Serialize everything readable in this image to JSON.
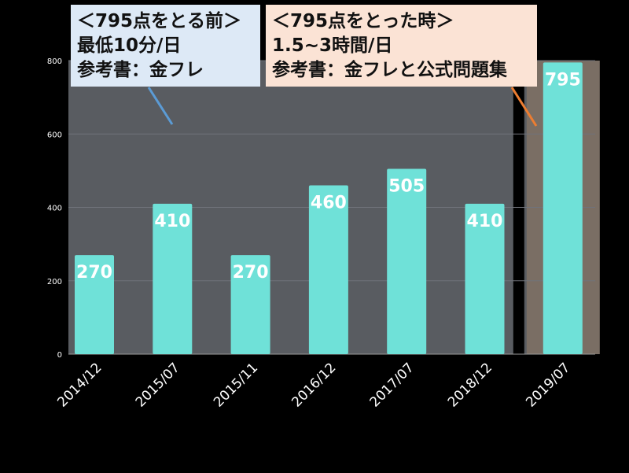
{
  "chart_data": {
    "type": "bar",
    "categories": [
      "2014/12",
      "2015/07",
      "2015/11",
      "2016/12",
      "2017/07",
      "2018/12",
      "2019/07"
    ],
    "values": [
      270,
      410,
      270,
      460,
      505,
      410,
      795
    ],
    "data_labels": [
      "270",
      "410",
      "270",
      "460",
      "505",
      "410",
      "795"
    ],
    "y_ticks": [
      0,
      200,
      400,
      600,
      800
    ],
    "ylim": [
      0,
      800
    ],
    "grid": true,
    "highlight_category": "2019/07"
  },
  "callouts": {
    "before": {
      "title": "＜795点をとる前＞",
      "line1": "最低10分/日",
      "line2": "参考書：金フレ"
    },
    "after": {
      "title": "＜795点をとった時＞",
      "line1": "1.5~3時間/日",
      "line2": "参考書：金フレと公式問題集"
    }
  },
  "colors": {
    "background": "#000000",
    "plot_area": "#595c61",
    "bar": "#6fe1d8",
    "highlight_panel": "#7a6e64",
    "data_label": "#ffffff",
    "axis_text": "#ffffff",
    "callout_before_bg": "#dde9f6",
    "callout_after_bg": "#fbe3d5",
    "pointer_before": "#5b9bd5",
    "pointer_after": "#ed7d31",
    "divider": "#000000"
  }
}
